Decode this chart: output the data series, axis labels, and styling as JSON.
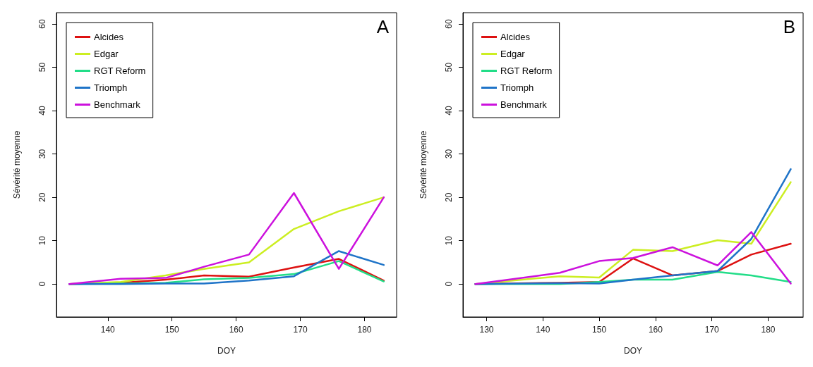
{
  "chart_data": [
    {
      "type": "line",
      "title": "A",
      "xlabel": "DOY",
      "ylabel": "Sévérité moyenne",
      "x": [
        134,
        142,
        149,
        155,
        162,
        169,
        176,
        183
      ],
      "series": [
        {
          "name": "Alcides",
          "color": "#dd1111",
          "values": [
            0,
            0.3,
            1,
            2,
            1.7,
            3.8,
            5.8,
            0.8
          ]
        },
        {
          "name": "Edgar",
          "color": "#ccee22",
          "values": [
            0,
            0.5,
            2,
            3.5,
            5,
            12.7,
            16.8,
            20
          ]
        },
        {
          "name": "RGT Reform",
          "color": "#22dd88",
          "values": [
            0,
            0.1,
            0.3,
            1.1,
            1.4,
            2.3,
            5.3,
            0.6
          ]
        },
        {
          "name": "Triomph",
          "color": "#1f74c8",
          "values": [
            0,
            0,
            0.1,
            0.1,
            0.8,
            1.8,
            7.6,
            4.4
          ]
        },
        {
          "name": "Benchmark",
          "color": "#cc11dd",
          "values": [
            0,
            1.2,
            1.4,
            4,
            6.8,
            21,
            3.5,
            20
          ]
        }
      ],
      "xlim": [
        132,
        185
      ],
      "xticks": [
        140,
        150,
        160,
        170,
        180
      ],
      "ylim": [
        -7.6,
        62.6
      ],
      "yticks": [
        0,
        10,
        20,
        30,
        40,
        50,
        60
      ],
      "legend": "top left",
      "grid": false,
      "marker": "none",
      "line_style": "solid"
    },
    {
      "type": "line",
      "title": "B",
      "xlabel": "DOY",
      "ylabel": "Sévérité moyenne",
      "x": [
        128,
        143,
        150,
        156,
        163,
        171,
        177,
        184
      ],
      "series": [
        {
          "name": "Alcides",
          "color": "#dd1111",
          "values": [
            0,
            0.3,
            0.5,
            5.9,
            2,
            3,
            6.8,
            9.3
          ]
        },
        {
          "name": "Edgar",
          "color": "#ccee22",
          "values": [
            0,
            1.8,
            1.5,
            7.9,
            7.6,
            10.1,
            9.3,
            23.5
          ]
        },
        {
          "name": "RGT Reform",
          "color": "#22dd88",
          "values": [
            0,
            0,
            0.5,
            1,
            1,
            2.8,
            2,
            0.5
          ]
        },
        {
          "name": "Triomph",
          "color": "#1f74c8",
          "values": [
            0,
            0.2,
            0.1,
            1,
            2,
            3,
            10.4,
            26.5
          ]
        },
        {
          "name": "Benchmark",
          "color": "#cc11dd",
          "values": [
            0,
            2.6,
            5.3,
            6,
            8.5,
            4.3,
            12,
            0.1
          ]
        }
      ],
      "xlim": [
        125.8,
        186.2
      ],
      "xticks": [
        130,
        140,
        150,
        160,
        170,
        180
      ],
      "ylim": [
        -7.6,
        62.6
      ],
      "yticks": [
        0,
        10,
        20,
        30,
        40,
        50,
        60
      ],
      "legend": "top left",
      "grid": false,
      "marker": "none",
      "line_style": "solid"
    }
  ]
}
